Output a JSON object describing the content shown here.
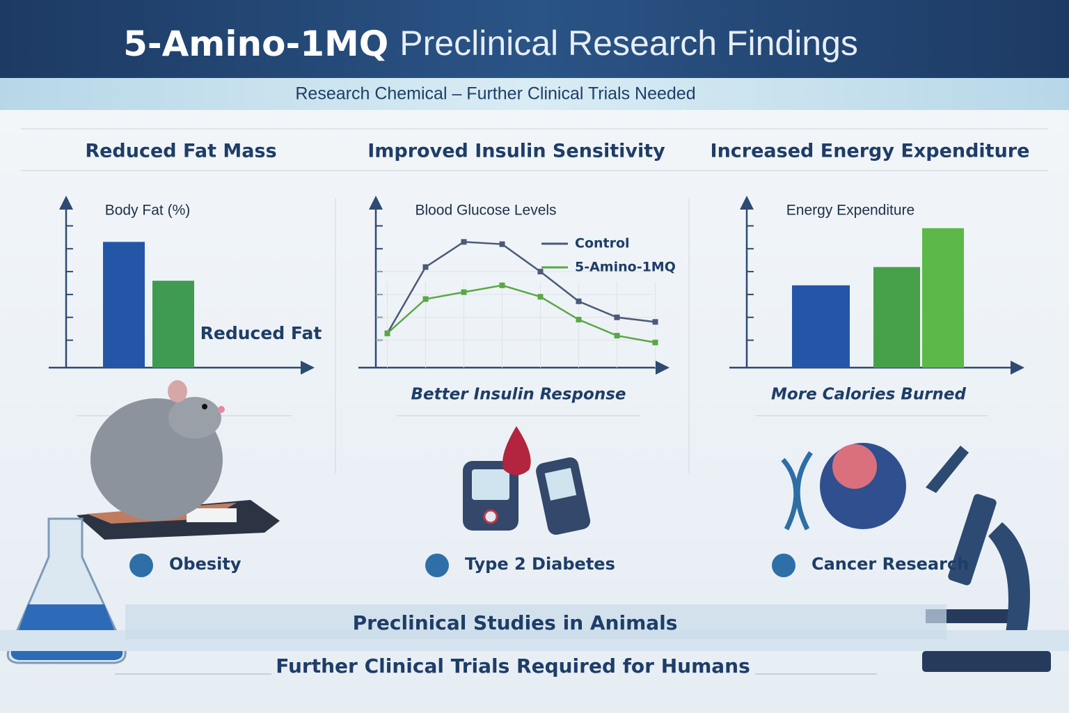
{
  "header": {
    "title_strong": "5-Amino-1MQ",
    "title_rest": "Preclinical Research Findings",
    "subtitle": "Research Chemical – Further Clinical Trials Needed"
  },
  "panels": [
    {
      "heading": "Reduced Fat Mass",
      "label": "Obesity"
    },
    {
      "heading": "Improved Insulin Sensitivity",
      "caption": "Better Insulin Response",
      "label": "Type 2 Diabetes"
    },
    {
      "heading": "Increased Energy Expenditure",
      "caption": "More Calories Burned",
      "label": "Cancer Research"
    }
  ],
  "chart_data": [
    {
      "type": "bar",
      "title": "Body Fat (%)",
      "annotation": "Reduced Fat",
      "categories": [
        null,
        null
      ],
      "values": [
        5.5,
        3.8
      ],
      "colors": [
        "#2456a8",
        "#3f9a52"
      ],
      "ylim": [
        0,
        7.4
      ],
      "yticks": [
        1.2,
        2.2,
        3.2,
        4.2,
        5.2,
        6.2
      ]
    },
    {
      "type": "line",
      "title": "Blood Glucose Levels",
      "grid": true,
      "x": [
        0,
        1,
        2,
        3,
        4,
        5,
        6,
        7
      ],
      "series": [
        {
          "name": "Control",
          "color": "#4a5a78",
          "values": [
            1.5,
            4.4,
            5.5,
            5.4,
            4.2,
            2.9,
            2.2,
            2.0
          ]
        },
        {
          "name": "5-Amino-1MQ",
          "color": "#5aa845",
          "values": [
            1.5,
            3.0,
            3.3,
            3.6,
            3.1,
            2.1,
            1.4,
            1.1
          ]
        }
      ],
      "xlim": [
        -0.3,
        7.3
      ],
      "ylim": [
        0,
        7.4
      ],
      "yticks": [
        1.2,
        2.2,
        3.2,
        4.2,
        5.2,
        6.2
      ]
    },
    {
      "type": "bar",
      "title": "Energy Expenditure",
      "categories": [
        null,
        null,
        null
      ],
      "values": [
        3.6,
        4.4,
        6.1
      ],
      "colors": [
        "#2456a8",
        "#46a04a",
        "#5cb848"
      ],
      "ylim": [
        0,
        7.4
      ],
      "yticks": [
        1.2,
        2.2,
        3.2,
        4.2,
        5.2,
        6.2
      ]
    }
  ],
  "footer": {
    "line1": "Preclinical Studies in Animals",
    "line2": "Further Clinical Trials Required for Humans"
  }
}
